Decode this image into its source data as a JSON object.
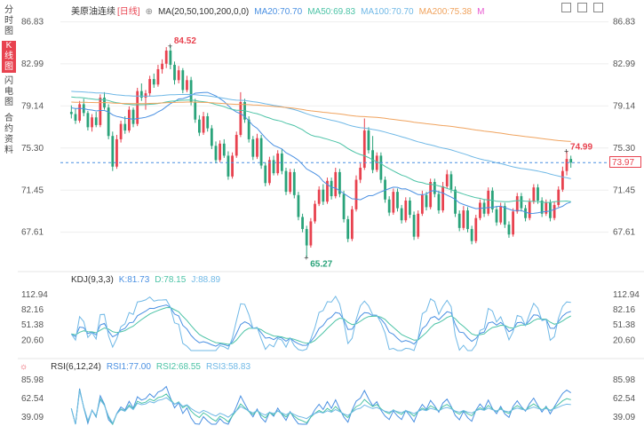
{
  "side_tabs": [
    {
      "label": "分时图",
      "active": false
    },
    {
      "label": "K线图",
      "active": true
    },
    {
      "label": "闪电图",
      "active": false
    },
    {
      "label": "合约资料",
      "active": false
    }
  ],
  "main_legend": {
    "name": "美原油连续",
    "period": "[日线]",
    "ma_params": "MA(20,50,100,200,0,0)",
    "ma20": "MA20:70.70",
    "ma50": "MA50:69.83",
    "ma100": "MA100:70.70",
    "ma200": "MA200:75.38",
    "more": "M"
  },
  "kdj_legend": {
    "params": "KDJ(9,3,3)",
    "k": "K:81.73",
    "d": "D:78.15",
    "j": "J:88.89"
  },
  "rsi_legend": {
    "params": "RSI(6,12,24)",
    "rsi1": "RSI1:77.00",
    "rsi2": "RSI2:68.55",
    "rsi3": "RSI3:58.83"
  },
  "last_price": "73.97",
  "colors": {
    "up": "#e8424f",
    "down": "#2aa37a",
    "ma20": "#4a90e2",
    "ma50": "#4cc3a6",
    "ma100": "#6fb8e6",
    "ma200": "#f0a35e",
    "grid": "#eeeeee"
  },
  "chart_data": {
    "type": "candlestick",
    "main_axis": {
      "ticks": [
        "86.83",
        "82.99",
        "79.14",
        "75.30",
        "71.45",
        "67.61"
      ],
      "ylim": [
        64.5,
        87.2
      ]
    },
    "annotations": {
      "high": "84.52",
      "low": "65.27",
      "last_high": "74.99"
    },
    "kdj_axis": {
      "ticks": [
        "112.94",
        "82.16",
        "51.38",
        "20.60"
      ]
    },
    "rsi_axis": {
      "ticks": [
        "85.98",
        "62.54",
        "39.09"
      ]
    },
    "candles": [
      [
        78.6,
        79.2,
        78.0,
        78.4
      ],
      [
        78.4,
        78.9,
        77.5,
        77.8
      ],
      [
        77.8,
        79.6,
        77.6,
        79.3
      ],
      [
        79.3,
        79.8,
        78.2,
        78.5
      ],
      [
        78.5,
        78.7,
        76.9,
        77.2
      ],
      [
        77.2,
        78.4,
        76.8,
        78.1
      ],
      [
        78.1,
        78.6,
        77.2,
        77.4
      ],
      [
        77.4,
        80.2,
        77.2,
        79.9
      ],
      [
        79.9,
        80.4,
        78.8,
        79.0
      ],
      [
        79.0,
        79.3,
        76.1,
        76.4
      ],
      [
        76.4,
        76.8,
        73.2,
        73.6
      ],
      [
        73.6,
        76.5,
        73.4,
        76.1
      ],
      [
        76.1,
        77.8,
        75.8,
        77.5
      ],
      [
        77.5,
        78.2,
        76.6,
        76.9
      ],
      [
        76.9,
        79.1,
        76.7,
        78.8
      ],
      [
        78.8,
        79.0,
        77.2,
        77.5
      ],
      [
        77.5,
        80.8,
        77.3,
        80.5
      ],
      [
        80.5,
        81.2,
        79.6,
        79.9
      ],
      [
        79.9,
        80.6,
        78.8,
        80.3
      ],
      [
        80.3,
        81.9,
        80.0,
        81.6
      ],
      [
        81.6,
        82.1,
        80.8,
        81.1
      ],
      [
        81.1,
        82.9,
        80.9,
        82.5
      ],
      [
        82.5,
        83.4,
        82.1,
        83.0
      ],
      [
        83.0,
        84.52,
        82.6,
        84.2
      ],
      [
        84.2,
        84.6,
        82.5,
        82.9
      ],
      [
        82.9,
        83.2,
        81.1,
        81.5
      ],
      [
        81.5,
        82.8,
        81.2,
        82.4
      ],
      [
        82.4,
        82.6,
        80.3,
        80.6
      ],
      [
        80.6,
        81.9,
        80.4,
        81.5
      ],
      [
        81.5,
        81.8,
        79.2,
        79.5
      ],
      [
        79.5,
        79.8,
        77.6,
        77.9
      ],
      [
        77.9,
        78.3,
        76.4,
        76.7
      ],
      [
        76.7,
        78.6,
        76.5,
        78.2
      ],
      [
        78.2,
        78.5,
        76.8,
        77.1
      ],
      [
        77.1,
        77.4,
        75.2,
        75.5
      ],
      [
        75.5,
        75.9,
        73.9,
        74.2
      ],
      [
        74.2,
        76.0,
        74.0,
        75.7
      ],
      [
        75.7,
        76.1,
        74.4,
        74.6
      ],
      [
        74.6,
        75.0,
        72.4,
        72.7
      ],
      [
        72.7,
        74.9,
        72.5,
        74.6
      ],
      [
        74.6,
        76.8,
        74.4,
        76.5
      ],
      [
        76.5,
        80.4,
        76.3,
        79.5
      ],
      [
        79.5,
        79.8,
        77.6,
        77.9
      ],
      [
        77.9,
        78.2,
        75.8,
        76.1
      ],
      [
        76.1,
        76.4,
        74.2,
        74.5
      ],
      [
        74.5,
        76.6,
        74.3,
        76.2
      ],
      [
        76.2,
        76.5,
        73.4,
        73.7
      ],
      [
        73.7,
        74.0,
        71.8,
        72.1
      ],
      [
        72.1,
        74.5,
        71.9,
        74.2
      ],
      [
        74.2,
        74.6,
        72.8,
        73.0
      ],
      [
        73.0,
        75.1,
        72.8,
        74.8
      ],
      [
        74.8,
        75.2,
        72.9,
        73.2
      ],
      [
        73.2,
        73.5,
        71.0,
        71.3
      ],
      [
        71.3,
        73.4,
        71.1,
        73.1
      ],
      [
        73.1,
        73.4,
        70.7,
        71.0
      ],
      [
        71.0,
        71.3,
        68.7,
        69.0
      ],
      [
        69.0,
        69.3,
        67.6,
        67.9
      ],
      [
        67.9,
        68.2,
        65.27,
        66.4
      ],
      [
        66.4,
        68.9,
        66.2,
        68.6
      ],
      [
        68.6,
        70.5,
        68.4,
        70.2
      ],
      [
        70.2,
        71.8,
        70.0,
        71.5
      ],
      [
        71.5,
        72.0,
        70.1,
        70.4
      ],
      [
        70.4,
        72.6,
        70.2,
        72.3
      ],
      [
        72.3,
        72.6,
        70.6,
        70.9
      ],
      [
        70.9,
        73.5,
        70.7,
        73.1
      ],
      [
        73.1,
        73.4,
        70.8,
        71.1
      ],
      [
        71.1,
        71.4,
        68.5,
        68.8
      ],
      [
        68.8,
        69.1,
        66.7,
        67.0
      ],
      [
        67.0,
        70.0,
        66.8,
        69.7
      ],
      [
        69.7,
        72.8,
        69.5,
        72.4
      ],
      [
        72.4,
        73.9,
        72.1,
        73.5
      ],
      [
        73.5,
        78.0,
        73.3,
        76.9
      ],
      [
        76.9,
        77.2,
        74.8,
        75.1
      ],
      [
        75.1,
        76.4,
        73.0,
        73.3
      ],
      [
        73.3,
        74.9,
        73.1,
        74.6
      ],
      [
        74.6,
        74.9,
        72.1,
        72.4
      ],
      [
        72.4,
        72.7,
        70.3,
        70.6
      ],
      [
        70.6,
        70.9,
        69.1,
        69.4
      ],
      [
        69.4,
        71.6,
        69.2,
        71.3
      ],
      [
        71.3,
        71.6,
        69.5,
        69.8
      ],
      [
        69.8,
        70.1,
        68.4,
        68.7
      ],
      [
        68.7,
        70.8,
        68.5,
        70.5
      ],
      [
        70.5,
        70.8,
        68.9,
        69.2
      ],
      [
        69.2,
        69.5,
        66.9,
        67.2
      ],
      [
        67.2,
        69.6,
        67.0,
        69.3
      ],
      [
        69.3,
        71.4,
        69.1,
        71.0
      ],
      [
        71.0,
        71.3,
        69.6,
        69.9
      ],
      [
        69.9,
        72.5,
        69.7,
        72.2
      ],
      [
        72.2,
        72.5,
        70.8,
        71.1
      ],
      [
        71.1,
        71.4,
        69.3,
        69.6
      ],
      [
        69.6,
        72.2,
        69.4,
        71.8
      ],
      [
        71.8,
        73.3,
        71.6,
        72.9
      ],
      [
        72.9,
        73.2,
        71.2,
        71.5
      ],
      [
        71.5,
        71.8,
        69.0,
        69.3
      ],
      [
        69.3,
        69.6,
        67.7,
        68.0
      ],
      [
        68.0,
        70.0,
        67.8,
        69.6
      ],
      [
        69.6,
        69.9,
        67.6,
        67.9
      ],
      [
        67.9,
        68.2,
        66.5,
        66.8
      ],
      [
        66.8,
        69.2,
        66.6,
        68.9
      ],
      [
        68.9,
        70.6,
        68.7,
        70.3
      ],
      [
        70.3,
        70.6,
        69.0,
        69.3
      ],
      [
        69.3,
        71.7,
        69.1,
        71.4
      ],
      [
        71.4,
        71.7,
        69.4,
        69.7
      ],
      [
        69.7,
        70.0,
        68.2,
        68.5
      ],
      [
        68.5,
        70.3,
        68.3,
        70.0
      ],
      [
        70.0,
        70.3,
        68.0,
        68.3
      ],
      [
        68.3,
        68.6,
        67.1,
        67.4
      ],
      [
        67.4,
        69.8,
        67.2,
        69.5
      ],
      [
        69.5,
        71.2,
        69.3,
        70.9
      ],
      [
        70.9,
        71.2,
        69.5,
        69.8
      ],
      [
        69.8,
        70.1,
        68.6,
        68.9
      ],
      [
        68.9,
        70.7,
        68.7,
        70.4
      ],
      [
        70.4,
        72.0,
        70.2,
        71.7
      ],
      [
        71.7,
        72.0,
        70.2,
        70.5
      ],
      [
        70.5,
        70.8,
        69.0,
        69.3
      ],
      [
        69.3,
        70.6,
        69.1,
        70.3
      ],
      [
        70.3,
        70.6,
        68.6,
        68.9
      ],
      [
        68.9,
        70.4,
        68.7,
        70.1
      ],
      [
        70.1,
        71.8,
        69.9,
        71.5
      ],
      [
        71.5,
        73.6,
        71.3,
        73.2
      ],
      [
        73.2,
        74.99,
        72.8,
        74.3
      ],
      [
        74.3,
        74.6,
        73.5,
        73.97
      ]
    ]
  }
}
